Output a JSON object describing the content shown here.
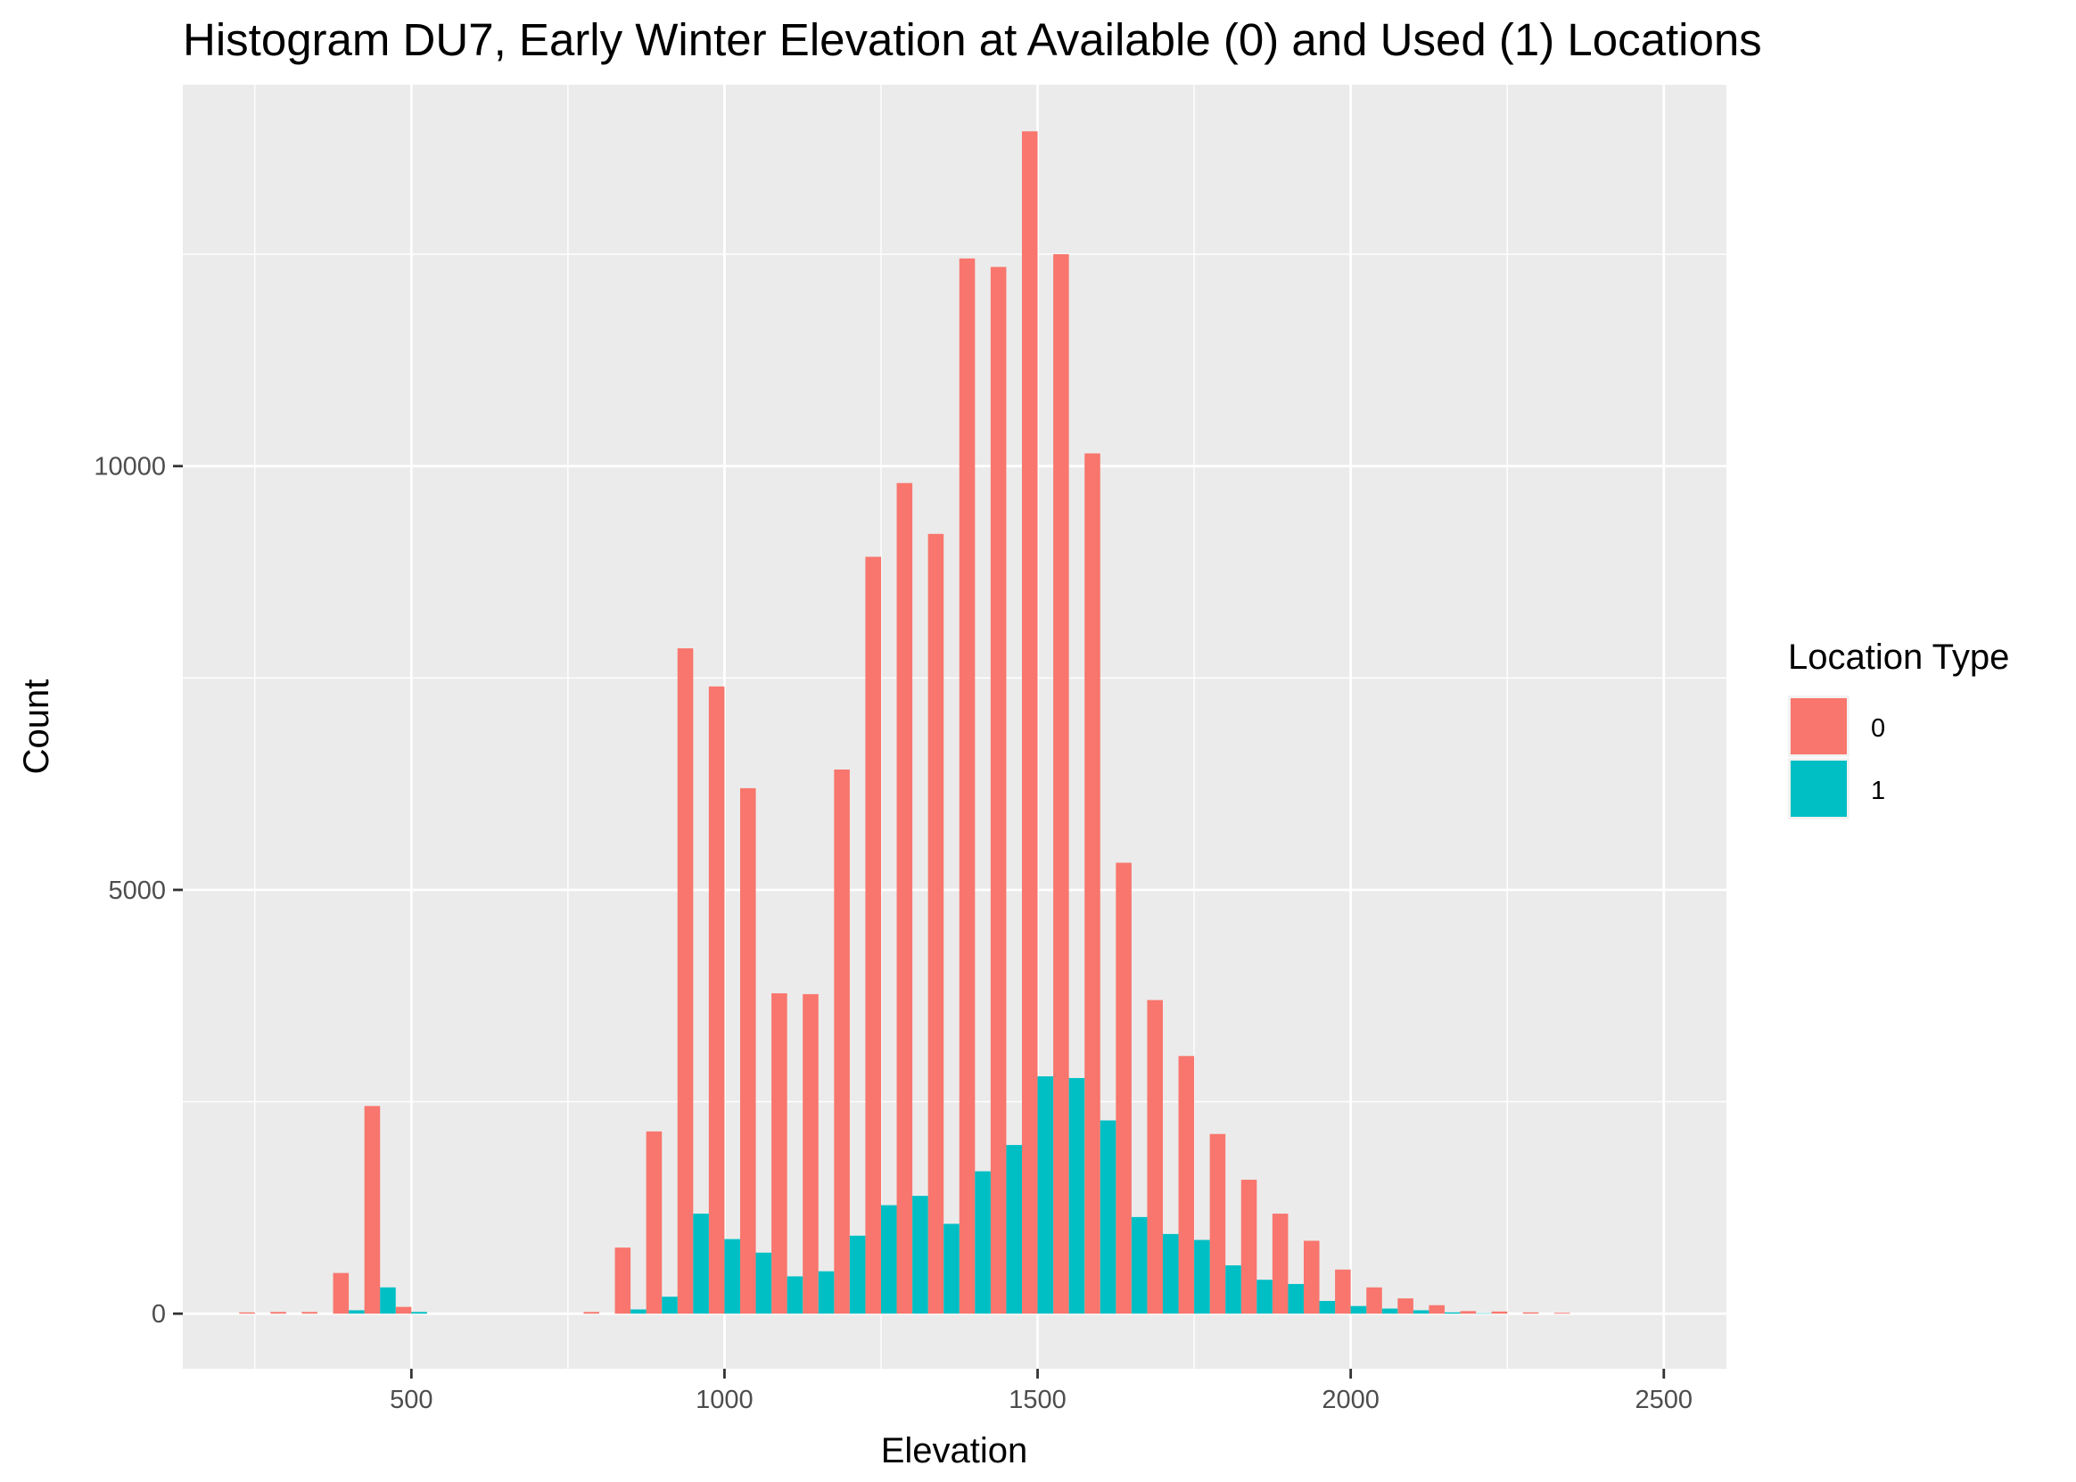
{
  "chart_data": {
    "type": "bar",
    "title": "Histogram DU7, Early Winter Elevation at Available (0) and Used (1) Locations",
    "xlabel": "Elevation",
    "ylabel": "Count",
    "xlim": [
      135,
      2600
    ],
    "ylim": [
      -650,
      14500
    ],
    "x_ticks": [
      500,
      1000,
      1500,
      2000,
      2500
    ],
    "x_tick_labels": [
      "500",
      "1000",
      "1500",
      "2000",
      "2500"
    ],
    "y_ticks": [
      0,
      5000,
      10000
    ],
    "y_tick_labels": [
      "0",
      "5000",
      "10000"
    ],
    "grid": true,
    "bin_width": 50,
    "legend": {
      "title": "Location Type",
      "position": "right",
      "entries": [
        {
          "label": "0",
          "color": "#F8766D"
        },
        {
          "label": "1",
          "color": "#00BFC4"
        }
      ]
    },
    "bins": [
      250,
      300,
      350,
      400,
      450,
      500,
      550,
      600,
      650,
      700,
      750,
      800,
      850,
      900,
      950,
      1000,
      1050,
      1100,
      1150,
      1200,
      1250,
      1300,
      1350,
      1400,
      1450,
      1500,
      1550,
      1600,
      1650,
      1700,
      1750,
      1800,
      1850,
      1900,
      1950,
      2000,
      2050,
      2100,
      2150,
      2200,
      2250,
      2300,
      2350
    ],
    "series": [
      {
        "name": "0",
        "color": "#F8766D",
        "values": [
          15,
          20,
          20,
          480,
          2450,
          80,
          0,
          0,
          0,
          0,
          0,
          20,
          780,
          2150,
          7850,
          7400,
          6200,
          3780,
          3770,
          6420,
          8930,
          9800,
          9200,
          12450,
          12350,
          13950,
          12500,
          10150,
          5320,
          3700,
          3040,
          2120,
          1580,
          1180,
          860,
          520,
          310,
          180,
          100,
          30,
          25,
          15,
          10
        ]
      },
      {
        "name": "1",
        "color": "#00BFC4",
        "values": [
          0,
          0,
          0,
          40,
          310,
          20,
          0,
          0,
          0,
          0,
          0,
          0,
          50,
          200,
          1180,
          880,
          720,
          440,
          500,
          920,
          1280,
          1390,
          1060,
          1680,
          1990,
          2800,
          2780,
          2280,
          1140,
          940,
          870,
          570,
          400,
          350,
          150,
          90,
          60,
          40,
          15,
          5,
          0,
          0,
          0
        ]
      }
    ]
  }
}
